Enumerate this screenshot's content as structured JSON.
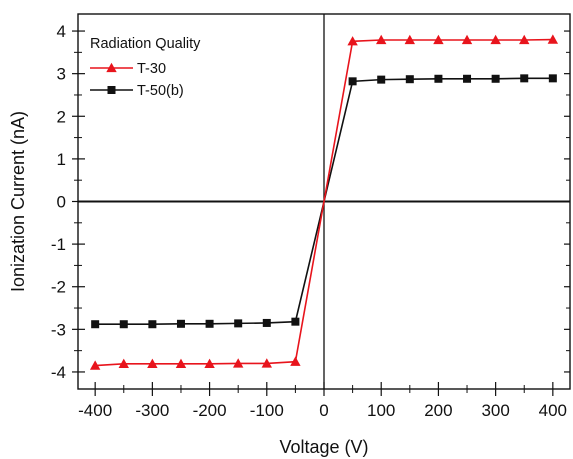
{
  "chart_data": {
    "type": "line",
    "xlabel": "Voltage (V)",
    "ylabel": "Ionization Current (nA)",
    "xlim": [
      -430,
      430
    ],
    "ylim": [
      -4.4,
      4.4
    ],
    "x_ticks": [
      -400,
      -300,
      -200,
      -100,
      0,
      100,
      200,
      300,
      400
    ],
    "y_ticks": [
      -4,
      -3,
      -2,
      -1,
      0,
      1,
      2,
      3,
      4
    ],
    "x_tick_labels": [
      "-400",
      "-300",
      "-200",
      "-100",
      "0",
      "100",
      "200",
      "300",
      "400"
    ],
    "y_tick_labels": [
      "-4",
      "-3",
      "-2",
      "-1",
      "0",
      "1",
      "2",
      "3",
      "4"
    ],
    "grid": false,
    "legend": {
      "title": "Radiation Quality",
      "placement": "top-left"
    },
    "series": [
      {
        "name": "T-30",
        "color": "#e8141c",
        "marker": "triangle",
        "x": [
          -400,
          -350,
          -300,
          -250,
          -200,
          -150,
          -100,
          -50,
          0,
          50,
          100,
          150,
          200,
          250,
          300,
          350,
          400
        ],
        "y": [
          -3.85,
          -3.81,
          -3.81,
          -3.81,
          -3.81,
          -3.8,
          -3.8,
          -3.76,
          0.0,
          3.76,
          3.79,
          3.79,
          3.79,
          3.79,
          3.79,
          3.79,
          3.8
        ]
      },
      {
        "name": "T-50(b)",
        "color": "#111111",
        "marker": "square",
        "x": [
          -400,
          -350,
          -300,
          -250,
          -200,
          -150,
          -100,
          -50,
          0,
          50,
          100,
          150,
          200,
          250,
          300,
          350,
          400
        ],
        "y": [
          -2.88,
          -2.88,
          -2.88,
          -2.87,
          -2.87,
          -2.86,
          -2.85,
          -2.82,
          0.0,
          2.82,
          2.86,
          2.87,
          2.88,
          2.88,
          2.88,
          2.89,
          2.89
        ]
      }
    ]
  }
}
